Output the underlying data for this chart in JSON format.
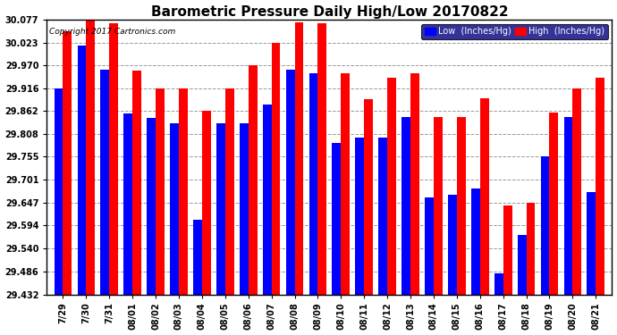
{
  "title": "Barometric Pressure Daily High/Low 20170822",
  "copyright": "Copyright 2017 Cartronics.com",
  "legend_low": "Low  (Inches/Hg)",
  "legend_high": "High  (Inches/Hg)",
  "dates": [
    "7/29",
    "7/30",
    "7/31",
    "08/01",
    "08/02",
    "08/03",
    "08/04",
    "08/05",
    "08/06",
    "08/07",
    "08/08",
    "08/09",
    "08/10",
    "08/11",
    "08/12",
    "08/13",
    "08/14",
    "08/15",
    "08/16",
    "08/17",
    "08/18",
    "08/19",
    "08/20",
    "08/21"
  ],
  "low": [
    29.916,
    30.015,
    29.96,
    29.857,
    29.847,
    29.833,
    29.608,
    29.833,
    29.833,
    29.878,
    29.96,
    29.95,
    29.787,
    29.8,
    29.8,
    29.848,
    29.66,
    29.665,
    29.68,
    29.482,
    29.572,
    29.757,
    29.848,
    29.672
  ],
  "high": [
    30.05,
    30.077,
    30.068,
    29.958,
    29.916,
    29.916,
    29.862,
    29.916,
    29.97,
    30.023,
    30.07,
    30.068,
    29.95,
    29.891,
    29.94,
    29.95,
    29.848,
    29.848,
    29.893,
    29.64,
    29.648,
    29.858,
    29.916,
    29.94
  ],
  "low_color": "#0000ff",
  "high_color": "#ff0000",
  "background_color": "#ffffff",
  "ylim_min": 29.432,
  "ylim_max": 30.077,
  "yticks": [
    29.432,
    29.486,
    29.54,
    29.594,
    29.647,
    29.701,
    29.755,
    29.808,
    29.862,
    29.916,
    29.97,
    30.023,
    30.077
  ],
  "title_fontsize": 11,
  "tick_fontsize": 7,
  "bar_width": 0.38
}
